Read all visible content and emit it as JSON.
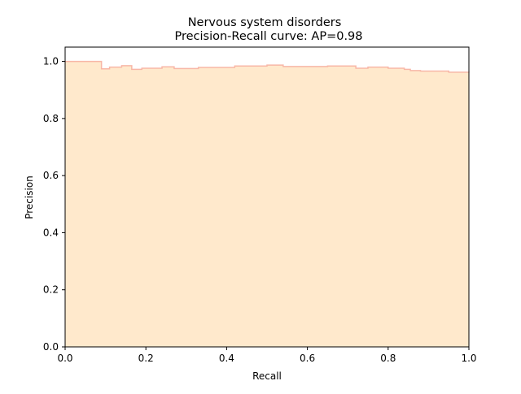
{
  "chart_data": {
    "type": "area",
    "title": "Nervous system disorders",
    "subtitle": "Precision-Recall curve: AP=0.98",
    "xlabel": "Recall",
    "ylabel": "Precision",
    "xlim": [
      0.0,
      1.0
    ],
    "ylim": [
      0.0,
      1.05
    ],
    "grid": false,
    "colors": {
      "fill": "#ffe9cc",
      "line": "#f8b7a7"
    },
    "x_ticks": [
      {
        "value": 0.0,
        "label": "0.0"
      },
      {
        "value": 0.2,
        "label": "0.2"
      },
      {
        "value": 0.4,
        "label": "0.4"
      },
      {
        "value": 0.6,
        "label": "0.6"
      },
      {
        "value": 0.8,
        "label": "0.8"
      },
      {
        "value": 1.0,
        "label": "1.0"
      }
    ],
    "y_ticks": [
      {
        "value": 0.0,
        "label": "0.0"
      },
      {
        "value": 0.2,
        "label": "0.2"
      },
      {
        "value": 0.4,
        "label": "0.4"
      },
      {
        "value": 0.6,
        "label": "0.6"
      },
      {
        "value": 0.8,
        "label": "0.8"
      },
      {
        "value": 1.0,
        "label": "1.0"
      }
    ],
    "series": [
      {
        "recall": [
          0.0,
          0.09,
          0.09,
          0.11,
          0.14,
          0.165,
          0.165,
          0.19,
          0.24,
          0.27,
          0.27,
          0.33,
          0.42,
          0.5,
          0.54,
          0.54,
          0.65,
          0.72,
          0.72,
          0.75,
          0.8,
          0.84,
          0.855,
          0.88,
          0.95,
          1.0
        ],
        "precision": [
          1.0,
          1.0,
          0.974,
          0.98,
          0.985,
          0.985,
          0.972,
          0.976,
          0.981,
          0.981,
          0.975,
          0.979,
          0.984,
          0.987,
          0.987,
          0.982,
          0.984,
          0.98,
          0.976,
          0.98,
          0.976,
          0.972,
          0.968,
          0.966,
          0.962,
          0.961
        ]
      }
    ]
  }
}
